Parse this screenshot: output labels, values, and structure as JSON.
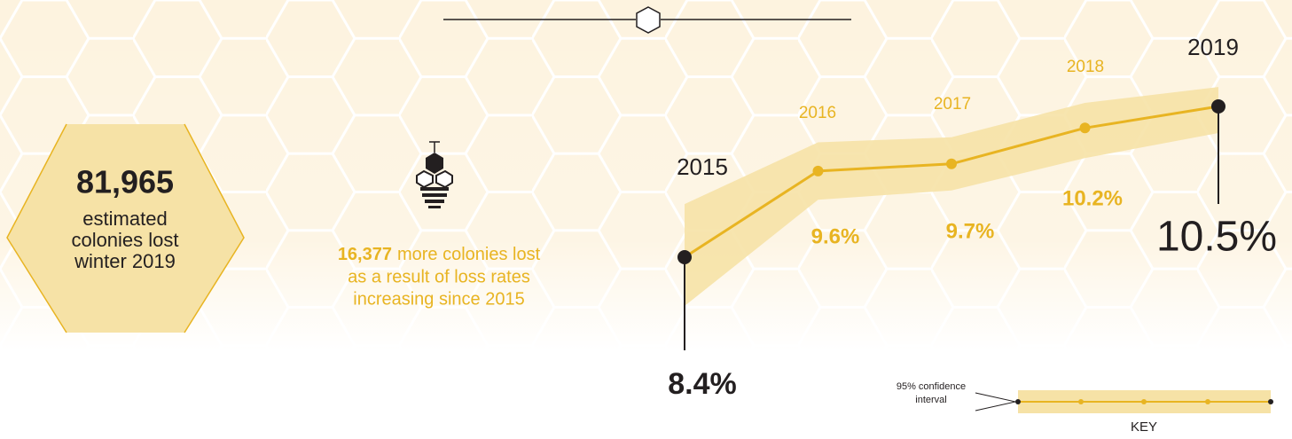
{
  "chart_data": {
    "type": "line",
    "categories": [
      "2015",
      "2016",
      "2017",
      "2018",
      "2019"
    ],
    "values": [
      8.4,
      9.6,
      9.7,
      10.2,
      10.5
    ],
    "value_labels": [
      "8.4%",
      "9.6%",
      "9.7%",
      "10.2%",
      "10.5%"
    ],
    "ci_lower": [
      7.72,
      9.2,
      9.33,
      9.78,
      10.13
    ],
    "ci_upper": [
      9.14,
      10.0,
      10.07,
      10.55,
      10.77
    ],
    "color": "#e8b422",
    "band_color": "#f6e2a6",
    "end_color": "#231f20"
  },
  "summary": {
    "number": "81,965",
    "lines": [
      "estimated",
      "colonies lost",
      "winter 2019"
    ]
  },
  "note": {
    "number": "16,377",
    "lines": [
      "more colonies lost",
      "as a result of loss rates",
      "increasing since 2015"
    ]
  },
  "key": {
    "label_lines": [
      "95% confidence",
      "interval"
    ],
    "title": "KEY"
  }
}
